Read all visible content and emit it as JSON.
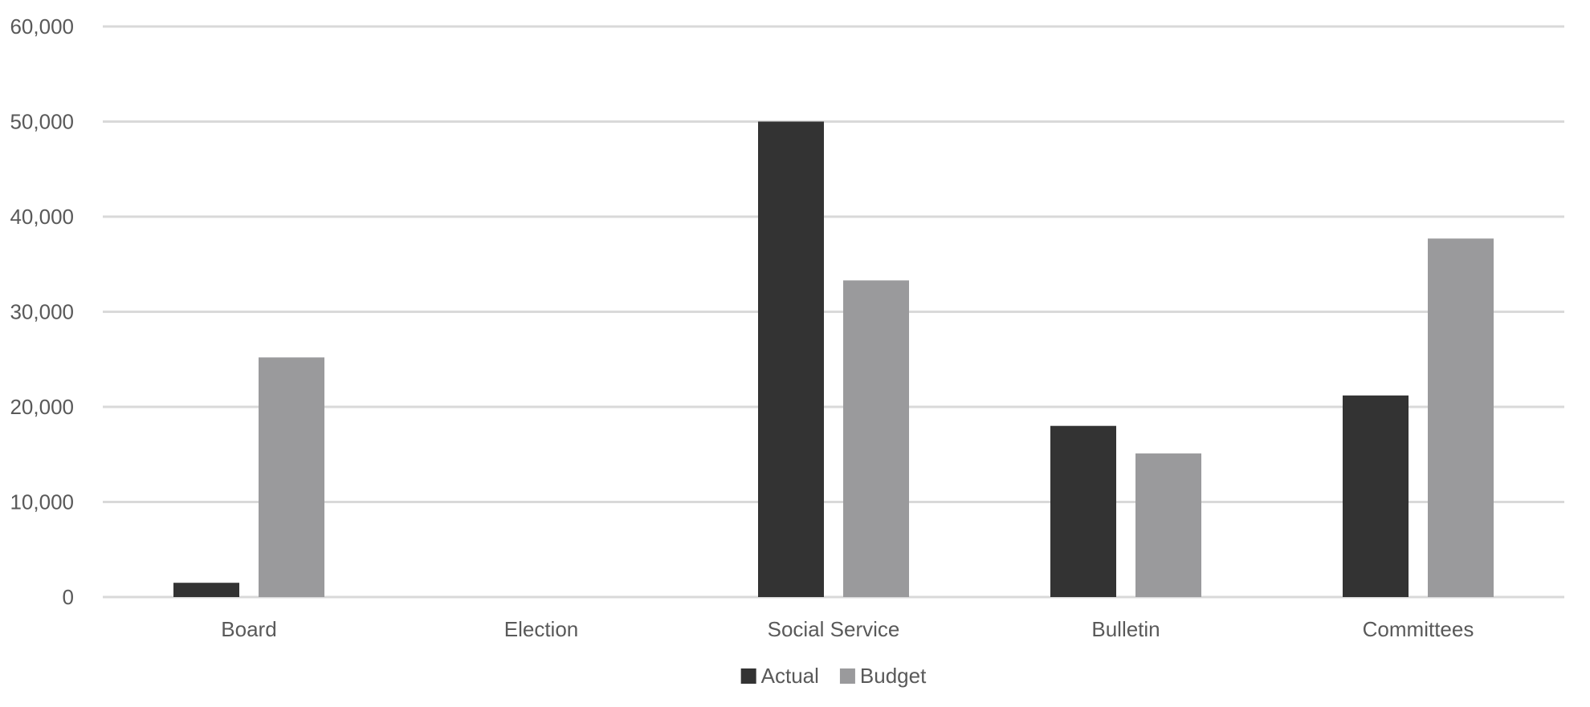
{
  "chart_data": {
    "type": "bar",
    "title": "",
    "xlabel": "",
    "ylabel": "",
    "categories": [
      "Board",
      "Election",
      "Social Service",
      "Bulletin",
      "Committees"
    ],
    "series": [
      {
        "name": "Actual",
        "color": "#333333",
        "values": [
          1500,
          0,
          50000,
          18000,
          21200
        ]
      },
      {
        "name": "Budget",
        "color": "#9a9a9c",
        "values": [
          25200,
          0,
          33300,
          15100,
          37700
        ]
      }
    ],
    "ylim": [
      0,
      60000
    ],
    "yticks": [
      0,
      10000,
      20000,
      30000,
      40000,
      50000,
      60000
    ],
    "ytick_labels": [
      "0",
      "10,000",
      "20,000",
      "30,000",
      "40,000",
      "50,000",
      "60,000"
    ],
    "grid": true,
    "gridline_color": "#d9d9d9",
    "legend_position": "bottom"
  }
}
